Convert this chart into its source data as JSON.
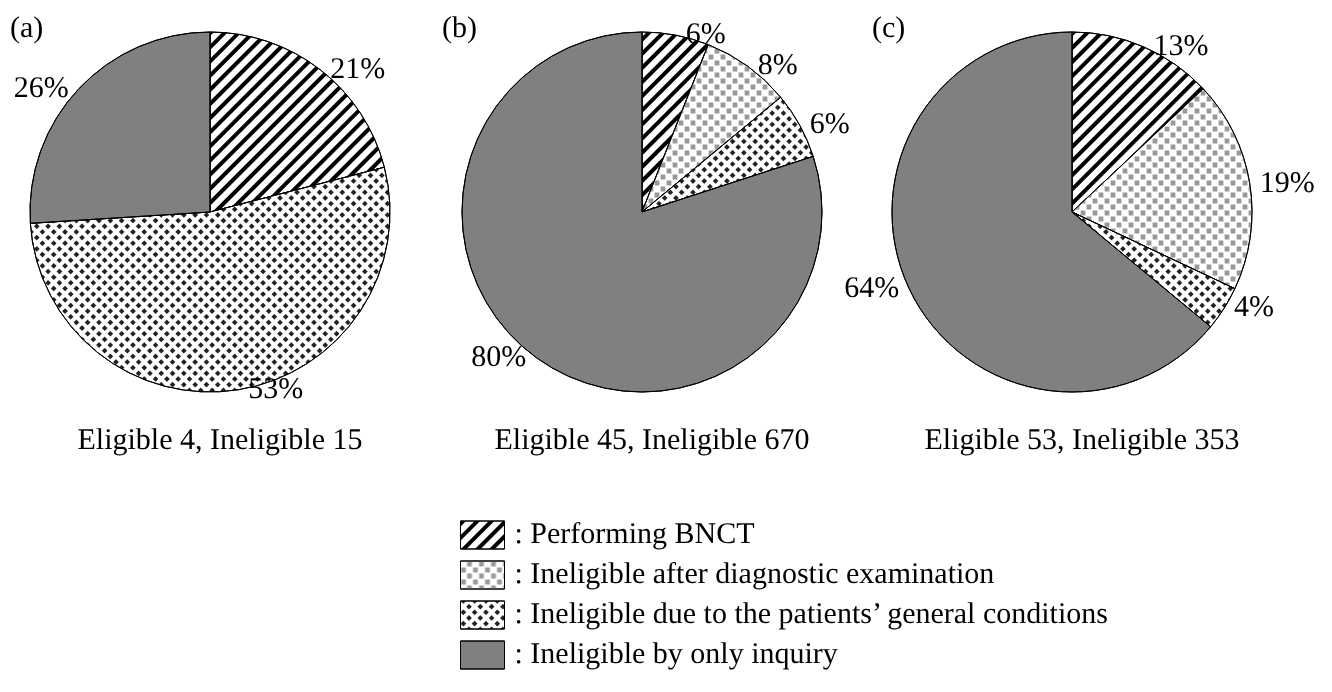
{
  "chart_data": {
    "type": "pie",
    "categories": [
      ": Performing BNCT",
      ": Ineligible after diagnostic examination",
      ": Ineligible due to the patients’ general conditions",
      ": Ineligible by only inquiry"
    ],
    "legend": "bottom",
    "annotations": [
      "Eligible 4, Ineligible 15",
      "Eligible 45, Ineligible 670",
      "Eligible 53, Ineligible 353"
    ],
    "series": [
      {
        "name": "(a)",
        "values": [
          21,
          null,
          53,
          26
        ],
        "colors": [
          "#ffffff",
          "#ffffff",
          "#ffffff",
          "#808080"
        ],
        "value_labels": [
          "21%",
          null,
          "53%",
          "26%"
        ]
      },
      {
        "name": "(b)",
        "values": [
          6,
          8,
          6,
          80
        ],
        "colors": [
          "#ffffff",
          "#ffffff",
          "#ffffff",
          "#808080"
        ],
        "value_labels": [
          "6%",
          "8%",
          "6%",
          "80%"
        ]
      },
      {
        "name": "(c)",
        "values": [
          13,
          19,
          4,
          64
        ],
        "colors": [
          "#ffffff",
          "#ffffff",
          "#ffffff",
          "#808080"
        ],
        "value_labels": [
          "13%",
          "19%",
          "4%",
          "64%"
        ]
      }
    ]
  }
}
